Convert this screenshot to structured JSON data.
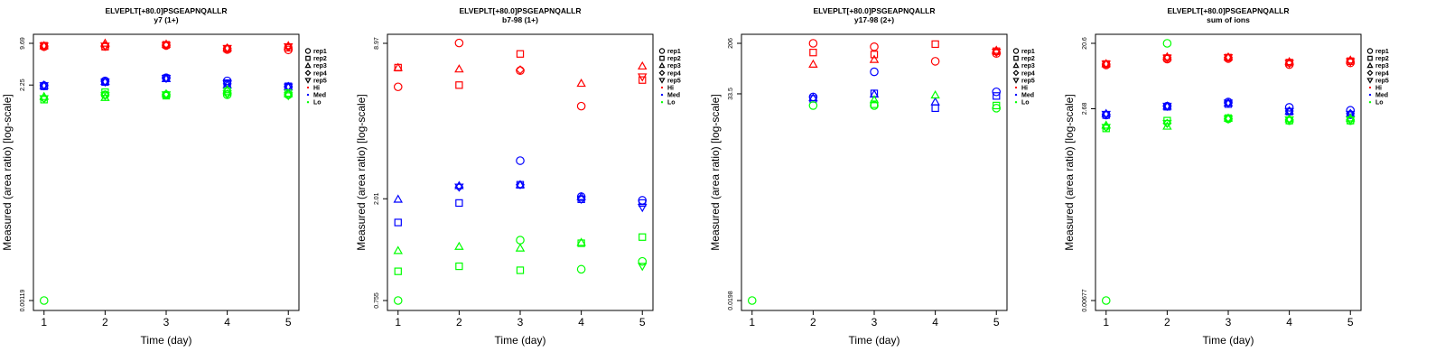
{
  "legend": {
    "items": [
      {
        "label": "rep1",
        "symbol": "circle",
        "color": "#000000"
      },
      {
        "label": "rep2",
        "symbol": "square",
        "color": "#000000"
      },
      {
        "label": "rep3",
        "symbol": "triangle",
        "color": "#000000"
      },
      {
        "label": "rep4",
        "symbol": "diamond",
        "color": "#000000"
      },
      {
        "label": "rep5",
        "symbol": "triangle-down",
        "color": "#000000"
      },
      {
        "label": "Hi",
        "symbol": "dot",
        "color": "#ff0000"
      },
      {
        "label": "Med",
        "symbol": "dot",
        "color": "#0000ff"
      },
      {
        "label": "Lo",
        "symbol": "dot",
        "color": "#00ff00"
      }
    ]
  },
  "colors": {
    "Hi": "#ff0000",
    "Med": "#0000ff",
    "Lo": "#00ff00"
  },
  "chart_data": [
    {
      "type": "scatter",
      "title": "ELVEPLT[+80.0]PSGEAPNQALLR",
      "subtitle": "y7 (1+)",
      "xlabel": "Time (day)",
      "ylabel": "Measured (area ratio) [log-scale]",
      "log_y": true,
      "xlim": [
        0.9,
        5.1
      ],
      "ylim": [
        0.00119,
        9.69
      ],
      "x_ticks": [
        1,
        2,
        3,
        4,
        5
      ],
      "y_ticks": [
        "0.00119",
        "2.25",
        "9.69"
      ],
      "legend_position": "right",
      "series": [
        {
          "group": "Hi",
          "color": "#ff0000",
          "points": [
            {
              "rep": "rep1",
              "symbol": "circle",
              "values": [
                8.6,
                8.7,
                9.0,
                7.8,
                7.7
              ]
            },
            {
              "rep": "rep2",
              "symbol": "square",
              "values": [
                8.9,
                8.6,
                9.2,
                8.0,
                8.3
              ]
            },
            {
              "rep": "rep3",
              "symbol": "triangle",
              "values": [
                8.9,
                9.7,
                9.4,
                8.2,
                8.9
              ]
            },
            {
              "rep": "rep4",
              "symbol": "diamond",
              "values": [
                8.8,
                8.9,
                9.1,
                8.2,
                8.5
              ]
            },
            {
              "rep": "rep5",
              "symbol": "triangle-down",
              "values": [
                8.8,
                8.8,
                9.0,
                8.1,
                8.6
              ]
            }
          ]
        },
        {
          "group": "Med",
          "color": "#0000ff",
          "points": [
            {
              "rep": "rep1",
              "symbol": "circle",
              "values": [
                2.2,
                2.6,
                2.9,
                2.6,
                2.1
              ]
            },
            {
              "rep": "rep2",
              "symbol": "square",
              "values": [
                2.15,
                2.5,
                2.85,
                2.4,
                2.15
              ]
            },
            {
              "rep": "rep3",
              "symbol": "triangle",
              "values": [
                2.2,
                2.55,
                2.8,
                2.25,
                2.1
              ]
            },
            {
              "rep": "rep4",
              "symbol": "diamond",
              "values": [
                2.25,
                2.55,
                2.85,
                2.35,
                2.15
              ]
            },
            {
              "rep": "rep5",
              "symbol": "triangle-down",
              "values": [
                2.2,
                2.5,
                2.85,
                2.35,
                2.1
              ]
            }
          ]
        },
        {
          "group": "Lo",
          "color": "#00ff00",
          "points": [
            {
              "rep": "rep1",
              "symbol": "circle",
              "values": [
                0.00119,
                1.6,
                1.6,
                1.6,
                1.6
              ]
            },
            {
              "rep": "rep2",
              "symbol": "square",
              "values": [
                1.35,
                1.75,
                1.55,
                1.8,
                1.7
              ]
            },
            {
              "rep": "rep3",
              "symbol": "triangle",
              "values": [
                1.5,
                1.45,
                1.65,
                1.9,
                1.65
              ]
            },
            {
              "rep": "rep4",
              "symbol": "diamond",
              "values": [
                1.4,
                1.6,
                1.6,
                1.65,
                1.6
              ]
            },
            {
              "rep": "rep5",
              "symbol": "triangle-down",
              "values": [
                1.4,
                1.55,
                1.6,
                1.65,
                1.55
              ]
            }
          ]
        }
      ]
    },
    {
      "type": "scatter",
      "title": "ELVEPLT[+80.0]PSGEAPNQALLR",
      "subtitle": "b7-98 (1+)",
      "xlabel": "Time (day)",
      "ylabel": "Measured (area ratio) [log-scale]",
      "log_y": true,
      "xlim": [
        0.9,
        5.1
      ],
      "ylim": [
        0.755,
        8.97
      ],
      "x_ticks": [
        1,
        2,
        3,
        4,
        5
      ],
      "y_ticks": [
        "0.755",
        "2.01",
        "8.97"
      ],
      "legend_position": "right",
      "series": [
        {
          "group": "Hi",
          "color": "#ff0000",
          "points": [
            {
              "rep": "rep1",
              "symbol": "circle",
              "values": [
                5.9,
                9.0,
                6.9,
                4.9,
                null
              ]
            },
            {
              "rep": "rep2",
              "symbol": "square",
              "values": [
                7.1,
                6.0,
                8.1,
                null,
                6.3
              ]
            },
            {
              "rep": "rep3",
              "symbol": "triangle",
              "values": [
                7.1,
                7.0,
                null,
                6.1,
                7.2
              ]
            },
            {
              "rep": "rep4",
              "symbol": "diamond",
              "values": [
                null,
                null,
                6.95,
                null,
                null
              ]
            },
            {
              "rep": "rep5",
              "symbol": "triangle-down",
              "values": [
                null,
                null,
                null,
                null,
                6.5
              ]
            }
          ]
        },
        {
          "group": "Med",
          "color": "#0000ff",
          "points": [
            {
              "rep": "rep1",
              "symbol": "circle",
              "values": [
                null,
                null,
                2.9,
                2.05,
                1.98
              ]
            },
            {
              "rep": "rep2",
              "symbol": "square",
              "values": [
                1.6,
                1.93,
                2.3,
                2.0,
                1.93
              ]
            },
            {
              "rep": "rep3",
              "symbol": "triangle",
              "values": [
                2.0,
                2.28,
                2.3,
                2.05,
                null
              ]
            },
            {
              "rep": "rep4",
              "symbol": "diamond",
              "values": [
                null,
                2.25,
                2.3,
                2.0,
                null
              ]
            },
            {
              "rep": "rep5",
              "symbol": "triangle-down",
              "values": [
                null,
                2.25,
                null,
                null,
                1.85
              ]
            }
          ]
        },
        {
          "group": "Lo",
          "color": "#00ff00",
          "points": [
            {
              "rep": "rep1",
              "symbol": "circle",
              "values": [
                0.755,
                null,
                1.35,
                1.02,
                1.1
              ]
            },
            {
              "rep": "rep2",
              "symbol": "square",
              "values": [
                1.0,
                1.05,
                1.01,
                1.31,
                1.39
              ]
            },
            {
              "rep": "rep3",
              "symbol": "triangle",
              "values": [
                1.22,
                1.27,
                1.25,
                1.32,
                null
              ]
            },
            {
              "rep": "rep4",
              "symbol": "diamond",
              "values": [
                null,
                null,
                null,
                null,
                null
              ]
            },
            {
              "rep": "rep5",
              "symbol": "triangle-down",
              "values": [
                null,
                null,
                null,
                null,
                1.05
              ]
            }
          ]
        }
      ]
    },
    {
      "type": "scatter",
      "title": "ELVEPLT[+80.0]PSGEAPNQALLR",
      "subtitle": "y17-98 (2+)",
      "xlabel": "Time (day)",
      "ylabel": "Measured (area ratio) [log-scale]",
      "log_y": true,
      "xlim": [
        0.9,
        5.1
      ],
      "ylim": [
        0.0198,
        206
      ],
      "x_ticks": [
        1,
        2,
        3,
        4,
        5
      ],
      "y_ticks": [
        "0.0198",
        "33.5",
        "206"
      ],
      "legend_position": "right",
      "series": [
        {
          "group": "Hi",
          "color": "#ff0000",
          "points": [
            {
              "rep": "rep1",
              "symbol": "circle",
              "values": [
                null,
                206,
                182,
                108,
                143
              ]
            },
            {
              "rep": "rep2",
              "symbol": "square",
              "values": [
                null,
                148,
                138,
                200,
                155
              ]
            },
            {
              "rep": "rep3",
              "symbol": "triangle",
              "values": [
                null,
                97,
                115,
                null,
                160
              ]
            },
            {
              "rep": "rep4",
              "symbol": "diamond",
              "values": [
                null,
                null,
                null,
                null,
                150
              ]
            },
            {
              "rep": "rep5",
              "symbol": "triangle-down",
              "values": [
                null,
                null,
                null,
                null,
                150
              ]
            }
          ]
        },
        {
          "group": "Med",
          "color": "#0000ff",
          "points": [
            {
              "rep": "rep1",
              "symbol": "circle",
              "values": [
                null,
                30,
                74,
                null,
                36
              ]
            },
            {
              "rep": "rep2",
              "symbol": "square",
              "values": [
                null,
                28,
                34,
                20,
                31
              ]
            },
            {
              "rep": "rep3",
              "symbol": "triangle",
              "values": [
                null,
                29,
                33,
                25,
                null
              ]
            },
            {
              "rep": "rep4",
              "symbol": "diamond",
              "values": [
                null,
                null,
                null,
                null,
                null
              ]
            },
            {
              "rep": "rep5",
              "symbol": "triangle-down",
              "values": [
                null,
                null,
                null,
                null,
                null
              ]
            }
          ]
        },
        {
          "group": "Lo",
          "color": "#00ff00",
          "points": [
            {
              "rep": "rep1",
              "symbol": "circle",
              "values": [
                0.0198,
                22,
                22,
                null,
                20
              ]
            },
            {
              "rep": "rep2",
              "symbol": "square",
              "values": [
                null,
                null,
                23,
                null,
                22
              ]
            },
            {
              "rep": "rep3",
              "symbol": "triangle",
              "values": [
                null,
                null,
                27,
                32,
                null
              ]
            },
            {
              "rep": "rep4",
              "symbol": "diamond",
              "values": [
                null,
                null,
                null,
                null,
                null
              ]
            },
            {
              "rep": "rep5",
              "symbol": "triangle-down",
              "values": [
                null,
                null,
                null,
                null,
                null
              ]
            }
          ]
        }
      ]
    },
    {
      "type": "scatter",
      "title": "ELVEPLT[+80.0]PSGEAPNQALLR",
      "subtitle": "sum of ions",
      "xlabel": "Time (day)",
      "ylabel": "Measured (area ratio) [log-scale]",
      "log_y": true,
      "xlim": [
        0.9,
        5.1
      ],
      "ylim": [
        0.00677,
        20.6
      ],
      "x_ticks": [
        1,
        2,
        3,
        4,
        5
      ],
      "y_ticks": [
        "0.00677",
        "2.68",
        "20.6"
      ],
      "legend_position": "right",
      "series": [
        {
          "group": "Hi",
          "color": "#ff0000",
          "points": [
            {
              "rep": "rep1",
              "symbol": "circle",
              "values": [
                10.5,
                12.6,
                12.8,
                10.6,
                11.2
              ]
            },
            {
              "rep": "rep2",
              "symbol": "square",
              "values": [
                10.8,
                13.0,
                13.2,
                11.3,
                11.8
              ]
            },
            {
              "rep": "rep3",
              "symbol": "triangle",
              "values": [
                10.9,
                13.5,
                13.4,
                11.6,
                12.2
              ]
            },
            {
              "rep": "rep4",
              "symbol": "diamond",
              "values": [
                10.8,
                13.2,
                13.3,
                11.1,
                11.8
              ]
            },
            {
              "rep": "rep5",
              "symbol": "triangle-down",
              "values": [
                10.8,
                13.0,
                13.2,
                11.0,
                11.6
              ]
            }
          ]
        },
        {
          "group": "Med",
          "color": "#0000ff",
          "points": [
            {
              "rep": "rep1",
              "symbol": "circle",
              "values": [
                2.2,
                2.9,
                3.3,
                2.8,
                2.55
              ]
            },
            {
              "rep": "rep2",
              "symbol": "square",
              "values": [
                2.2,
                2.85,
                3.1,
                2.45,
                2.2
              ]
            },
            {
              "rep": "rep3",
              "symbol": "triangle",
              "values": [
                2.3,
                2.9,
                3.2,
                2.5,
                2.3
              ]
            },
            {
              "rep": "rep4",
              "symbol": "diamond",
              "values": [
                2.25,
                2.9,
                3.2,
                2.5,
                2.3
              ]
            },
            {
              "rep": "rep5",
              "symbol": "triangle-down",
              "values": [
                2.25,
                2.9,
                3.2,
                2.45,
                2.25
              ]
            }
          ]
        },
        {
          "group": "Lo",
          "color": "#00ff00",
          "points": [
            {
              "rep": "rep1",
              "symbol": "circle",
              "values": [
                0.00677,
                20.6,
                1.95,
                1.85,
                1.85
              ]
            },
            {
              "rep": "rep2",
              "symbol": "square",
              "values": [
                1.45,
                1.85,
                2.0,
                1.85,
                1.85
              ]
            },
            {
              "rep": "rep3",
              "symbol": "triangle",
              "values": [
                1.6,
                1.55,
                2.0,
                1.95,
                2.0
              ]
            },
            {
              "rep": "rep4",
              "symbol": "diamond",
              "values": [
                1.5,
                1.7,
                1.95,
                1.9,
                1.9
              ]
            },
            {
              "rep": "rep5",
              "symbol": "triangle-down",
              "values": [
                1.5,
                1.7,
                1.95,
                1.9,
                1.9
              ]
            }
          ]
        }
      ]
    }
  ]
}
